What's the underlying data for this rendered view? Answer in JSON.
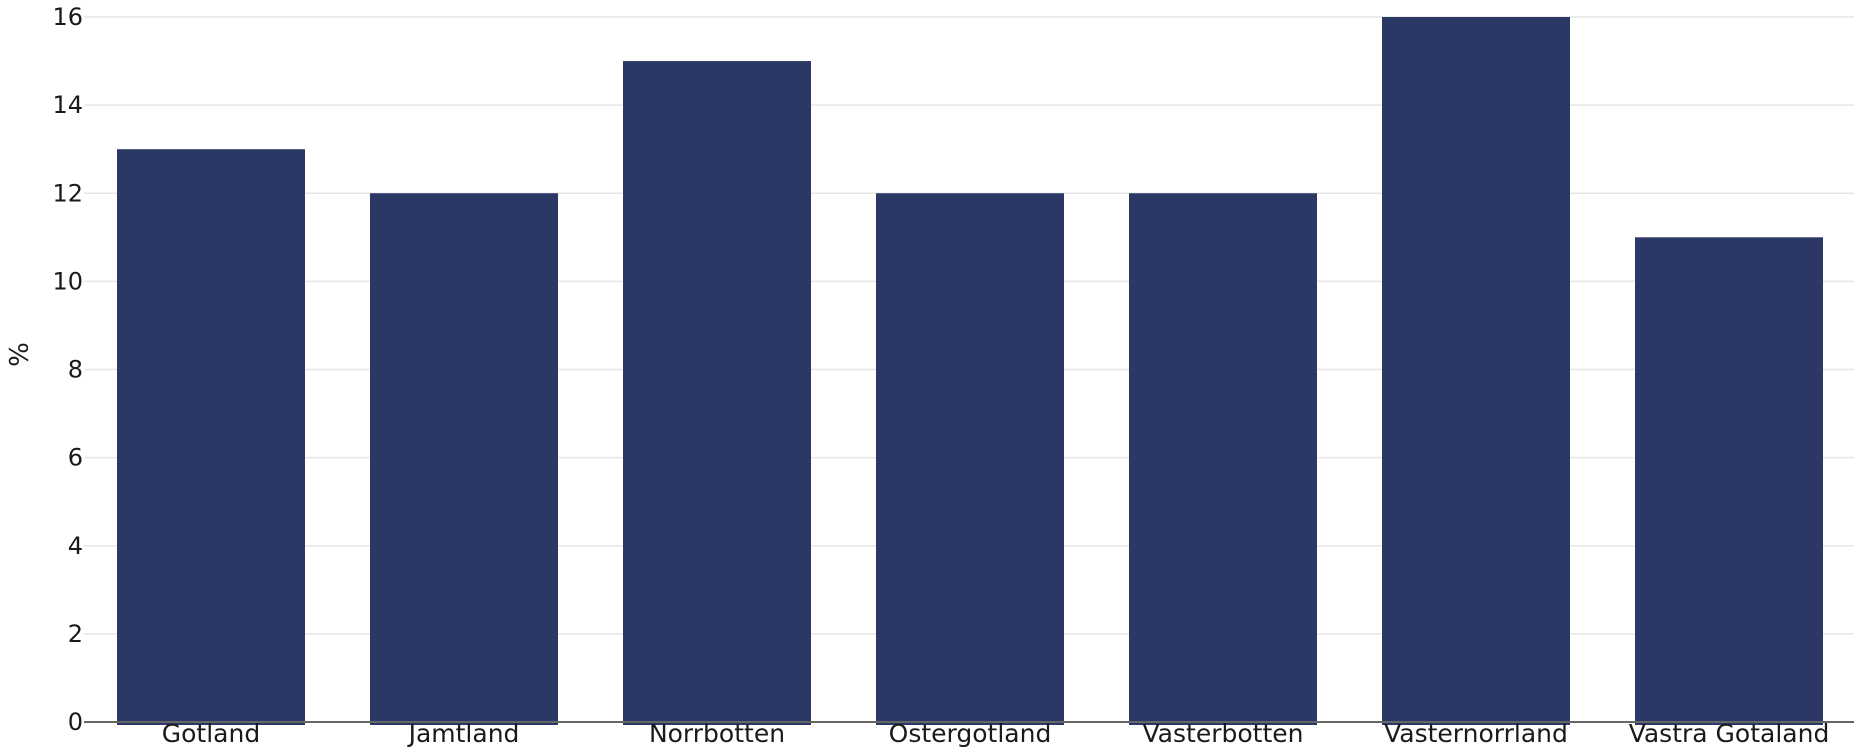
{
  "chart_data": {
    "type": "bar",
    "categories": [
      "Gotland",
      "Jamtland",
      "Norrbotten",
      "Ostergotland",
      "Vasterbotten",
      "Vasternorrland",
      "Vastra Gotaland"
    ],
    "values": [
      13,
      12,
      15,
      12,
      12,
      16,
      11
    ],
    "title": "",
    "xlabel": "",
    "ylabel": "%",
    "ylim": [
      0,
      16
    ],
    "yticks": [
      0,
      2,
      4,
      6,
      8,
      10,
      12,
      14,
      16
    ],
    "grid": true,
    "legend": "none",
    "colors": {
      "bar": "#2b3765",
      "grid": "#e6e6e6",
      "axis": "#666666"
    }
  }
}
